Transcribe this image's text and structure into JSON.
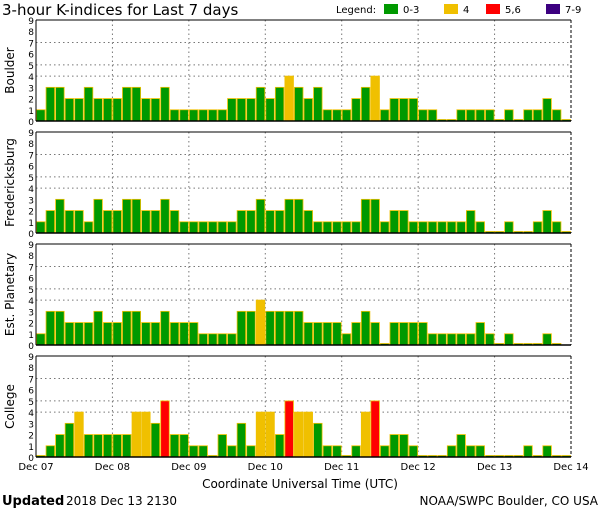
{
  "colors": {
    "k0_3": "#009900",
    "k4": "#f0c000",
    "k5_6": "#ff0000",
    "k7_9": "#3c0080",
    "outline": "#f0c000"
  },
  "chart_data": {
    "type": "bar",
    "title": "3-hour K-indices for Last 7 days",
    "legend": {
      "label": "Legend:",
      "entries": [
        "0-3",
        "4",
        "5,6",
        "7-9"
      ],
      "placement": "top-right"
    },
    "xlabel": "Coordinate Universal Time (UTC)",
    "x_ticks": [
      "Dec 07",
      "Dec 08",
      "Dec 09",
      "Dec 10",
      "Dec 11",
      "Dec 12",
      "Dec 13",
      "Dec 14"
    ],
    "y_ticks": [
      "0",
      "1",
      "2",
      "3",
      "4",
      "5",
      "6",
      "7",
      "8",
      "9"
    ],
    "ylim": [
      0,
      9
    ],
    "grid_levels": [
      4,
      5,
      7
    ],
    "bars_per_day": 8,
    "panels": [
      {
        "name": "Boulder",
        "values": [
          1,
          3,
          3,
          2,
          2,
          3,
          2,
          2,
          2,
          3,
          3,
          2,
          2,
          3,
          1,
          1,
          1,
          1,
          1,
          1,
          2,
          2,
          2,
          3,
          2,
          3,
          4,
          3,
          2,
          3,
          1,
          1,
          1,
          2,
          3,
          4,
          1,
          2,
          2,
          2,
          1,
          1,
          0,
          0,
          1,
          1,
          1,
          1,
          0,
          1,
          0,
          1,
          1,
          2,
          1,
          0
        ]
      },
      {
        "name": "Fredericksburg",
        "values": [
          1,
          2,
          3,
          2,
          2,
          1,
          3,
          2,
          2,
          3,
          3,
          2,
          2,
          3,
          2,
          1,
          1,
          1,
          1,
          1,
          1,
          2,
          2,
          3,
          2,
          2,
          3,
          3,
          2,
          1,
          1,
          1,
          1,
          1,
          3,
          3,
          1,
          2,
          2,
          1,
          1,
          1,
          1,
          1,
          1,
          2,
          1,
          0,
          0,
          1,
          0,
          0,
          1,
          2,
          1,
          0
        ]
      },
      {
        "name": "Est. Planetary",
        "values": [
          1,
          3,
          3,
          2,
          2,
          2,
          3,
          2,
          2,
          3,
          3,
          2,
          2,
          3,
          2,
          2,
          2,
          1,
          1,
          1,
          1,
          3,
          3,
          4,
          3,
          3,
          3,
          3,
          2,
          2,
          2,
          2,
          1,
          2,
          3,
          2,
          0,
          2,
          2,
          2,
          2,
          1,
          1,
          1,
          1,
          1,
          2,
          1,
          0,
          1,
          0,
          0,
          0,
          1,
          0,
          null
        ]
      },
      {
        "name": "College",
        "values": [
          0,
          1,
          2,
          3,
          4,
          2,
          2,
          2,
          2,
          2,
          4,
          4,
          3,
          5,
          2,
          2,
          1,
          1,
          0,
          2,
          1,
          3,
          1,
          4,
          4,
          2,
          5,
          4,
          4,
          3,
          1,
          1,
          0,
          1,
          4,
          5,
          1,
          2,
          2,
          1,
          0,
          0,
          0,
          1,
          2,
          1,
          1,
          0,
          0,
          0,
          0,
          1,
          0,
          1,
          0,
          0
        ]
      }
    ]
  },
  "footer": {
    "updated_label": "Updated",
    "updated_value": "2018 Dec 13 2130",
    "credit": "NOAA/SWPC Boulder, CO USA"
  }
}
